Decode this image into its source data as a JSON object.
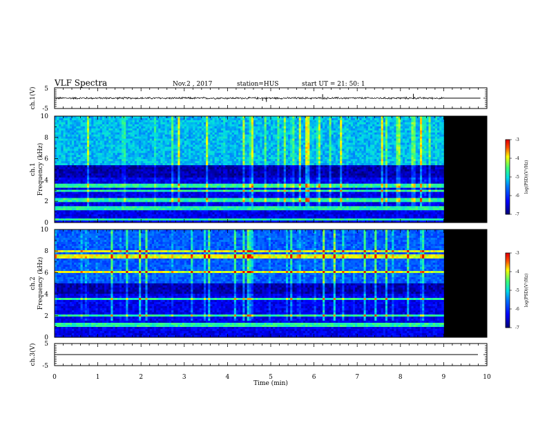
{
  "header": {
    "title": "VLF Spectra",
    "date": "Nov.2 , 2017",
    "station": "station=HUS",
    "start": "start UT = 21: 50: 1"
  },
  "chart_data": [
    {
      "id": "ch1_wave",
      "type": "line",
      "ylabel": "ch.1(V)",
      "ylim": [
        -5,
        5
      ],
      "yticks": [
        "5",
        "-5"
      ],
      "data_end_min": 9.0,
      "baseline": 0,
      "amplitude": 0.35,
      "spikes": [
        {
          "x": 4.81,
          "y": -1.3
        },
        {
          "x": 4.9,
          "y": -1.8
        },
        {
          "x": 6.2,
          "y": 1.9
        },
        {
          "x": 8.3,
          "y": 2.1
        }
      ]
    },
    {
      "id": "ch1_spec",
      "type": "heatmap",
      "ylabel_line1": "ch.1",
      "ylabel_line2": "Frequency (kHz)",
      "ylim": [
        0,
        10
      ],
      "yticks": [
        "0",
        "2",
        "4",
        "6",
        "8",
        "10"
      ],
      "data_end_min": 9.0,
      "bands_khz": [
        0.3,
        1.35,
        1.95,
        2.2,
        3.0,
        3.45,
        3.6
      ],
      "hf_cutoff_khz": 5.3,
      "colorbar": {
        "label": "log(PSD)(V²/Hz)",
        "min": -7,
        "max": -3,
        "ticks": [
          "-3",
          "-4",
          "-5",
          "-6",
          "-7"
        ]
      }
    },
    {
      "id": "ch2_spec",
      "type": "heatmap",
      "ylabel_line1": "ch.2",
      "ylabel_line2": "Frequency (kHz)",
      "ylim": [
        0,
        10
      ],
      "yticks": [
        "0",
        "2",
        "4",
        "6",
        "8",
        "10"
      ],
      "data_end_min": 9.0,
      "bands_khz": [
        1.0,
        1.3,
        2.0,
        3.55,
        6.0,
        7.5,
        8.0
      ],
      "hf_cutoff_khz": 5.0,
      "colorbar": {
        "label": "log(PSD)(V²/Hz)",
        "min": -7,
        "max": -3,
        "ticks": [
          "-3",
          "-4",
          "-5",
          "-6",
          "-7"
        ]
      }
    },
    {
      "id": "ch3_wave",
      "type": "line",
      "ylabel": "ch.3(V)",
      "ylim": [
        -5,
        5
      ],
      "yticks": [
        "5",
        "0",
        "-5"
      ],
      "baseline": 0
    }
  ],
  "xaxis": {
    "label": "Time (min)",
    "xlim": [
      0,
      10
    ],
    "ticks": [
      "0",
      "1",
      "2",
      "3",
      "4",
      "5",
      "6",
      "7",
      "8",
      "9",
      "10"
    ]
  }
}
